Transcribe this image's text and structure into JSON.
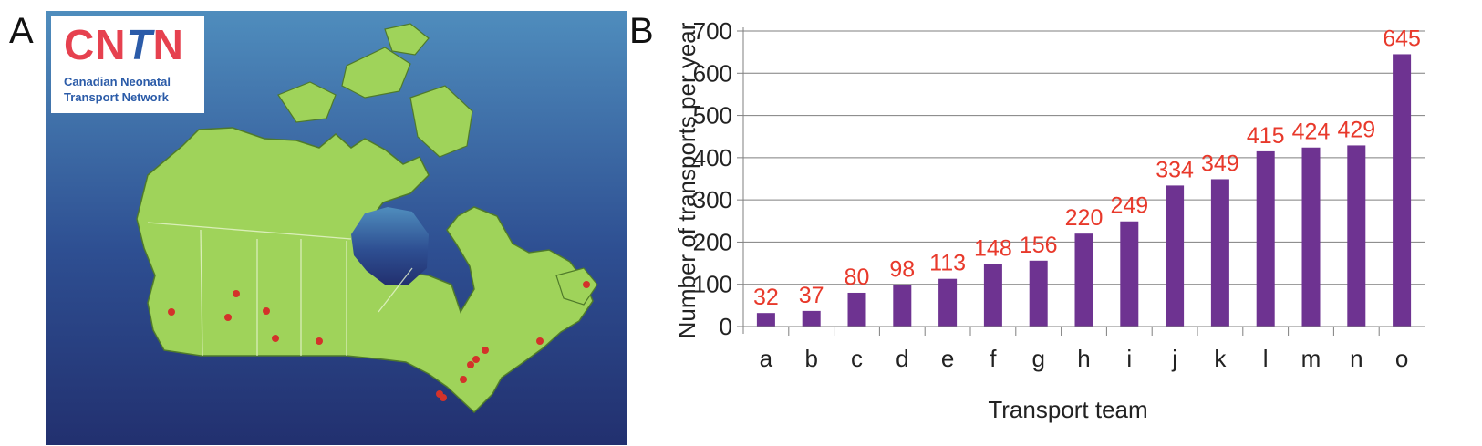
{
  "panel_a": {
    "letter": "A",
    "logo": {
      "title_part1": "CN",
      "title_part2": "T",
      "title_part3": "N",
      "subtitle_line1": "Canadian Neonatal",
      "subtitle_line2": "Transport Network"
    },
    "colors": {
      "ocean_top": "#4a86b8",
      "ocean_bottom": "#243a7a",
      "land": "#9fd35a",
      "marker": "#d3322a"
    }
  },
  "panel_b": {
    "letter": "B"
  },
  "chart_data": {
    "type": "bar",
    "categories": [
      "a",
      "b",
      "c",
      "d",
      "e",
      "f",
      "g",
      "h",
      "i",
      "j",
      "k",
      "l",
      "m",
      "n",
      "o"
    ],
    "values": [
      32,
      37,
      80,
      98,
      113,
      148,
      156,
      220,
      249,
      334,
      349,
      415,
      424,
      429,
      645
    ],
    "title": "",
    "xlabel": "Transport team",
    "ylabel": "Number of transports per year",
    "ylim": [
      0,
      700
    ],
    "yticks": [
      0,
      100,
      200,
      300,
      400,
      500,
      600,
      700
    ],
    "grid": true,
    "bar_color": "#6e3391",
    "label_color": "#e8392b"
  }
}
